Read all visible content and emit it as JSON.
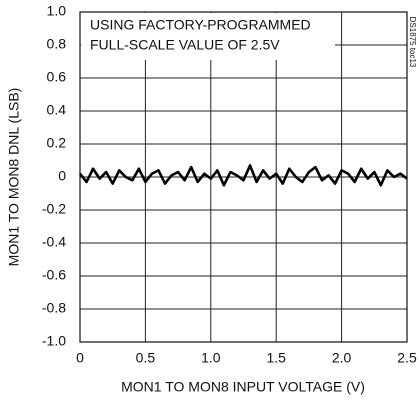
{
  "chart_data": {
    "type": "line",
    "xlabel": "MON1 TO MON8 INPUT VOLTAGE (V)",
    "ylabel": "MON1 TO MON8 DNL (LSB)",
    "annotation": [
      "USING FACTORY-PROGRAMMED",
      "FULL-SCALE VALUE OF 2.5V"
    ],
    "note": "DS1875 toc13",
    "x": [
      0,
      0.05,
      0.1,
      0.15,
      0.2,
      0.25,
      0.3,
      0.35,
      0.4,
      0.45,
      0.5,
      0.55,
      0.6,
      0.65,
      0.7,
      0.75,
      0.8,
      0.85,
      0.9,
      0.95,
      1,
      1.05,
      1.1,
      1.15,
      1.2,
      1.25,
      1.3,
      1.35,
      1.4,
      1.45,
      1.5,
      1.55,
      1.6,
      1.65,
      1.7,
      1.75,
      1.8,
      1.85,
      1.9,
      1.95,
      2,
      2.05,
      2.1,
      2.15,
      2.2,
      2.25,
      2.3,
      2.35,
      2.4,
      2.45,
      2.5
    ],
    "values": [
      0.02,
      -0.03,
      0.05,
      -0.01,
      0.03,
      -0.04,
      0.04,
      0.0,
      -0.02,
      0.05,
      -0.03,
      0.02,
      0.04,
      -0.04,
      0.01,
      0.03,
      -0.02,
      0.06,
      -0.03,
      0.02,
      -0.01,
      0.04,
      -0.05,
      0.03,
      0.01,
      -0.02,
      0.07,
      -0.03,
      0.04,
      -0.01,
      0.02,
      -0.04,
      0.05,
      0.0,
      -0.03,
      0.03,
      0.06,
      -0.02,
      0.01,
      -0.04,
      0.04,
      0.02,
      -0.03,
      0.05,
      -0.01,
      0.03,
      -0.05,
      0.04,
      0.0,
      0.02,
      -0.01
    ],
    "color": "#000000",
    "xlim": [
      0,
      2.5
    ],
    "xticks": [
      0,
      0.5,
      {
        "value": 1,
        "label": "1.0"
      },
      1.5,
      {
        "value": 2,
        "label": "2.0"
      },
      2.5
    ],
    "ylim": [
      -1,
      1
    ],
    "yticks": [
      {
        "value": 1,
        "label": "1.0"
      },
      0.8,
      0.6,
      0.4,
      0.2,
      0,
      -0.2,
      -0.4,
      -0.6,
      -0.8,
      {
        "value": -1,
        "label": "-1.0"
      }
    ],
    "grid": true
  }
}
